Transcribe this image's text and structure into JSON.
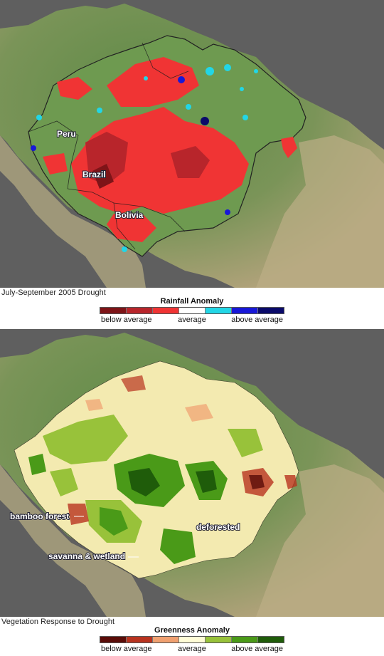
{
  "top": {
    "caption": "July-September 2005 Drought",
    "legend": {
      "title": "Rainfall Anomaly",
      "labels": [
        "below average",
        "average",
        "above average"
      ],
      "colors": [
        "#7e1418",
        "#b8252b",
        "#f03434",
        "#ffffff",
        "#22d6e6",
        "#1818d8",
        "#0a0a6a"
      ]
    },
    "labels": [
      "Peru",
      "Brazil",
      "Bolivia"
    ]
  },
  "bottom": {
    "caption": "Vegetation Response to Drought",
    "legend": {
      "title": "Greenness Anomaly",
      "labels": [
        "below average",
        "average",
        "above average"
      ],
      "colors": [
        "#5a0c08",
        "#b8331f",
        "#f0a070",
        "#fffcd6",
        "#98c23a",
        "#4a9a18",
        "#1f5c0a"
      ]
    },
    "labels": [
      "bamboo forest",
      "deforested",
      "savanna & wetland"
    ]
  }
}
